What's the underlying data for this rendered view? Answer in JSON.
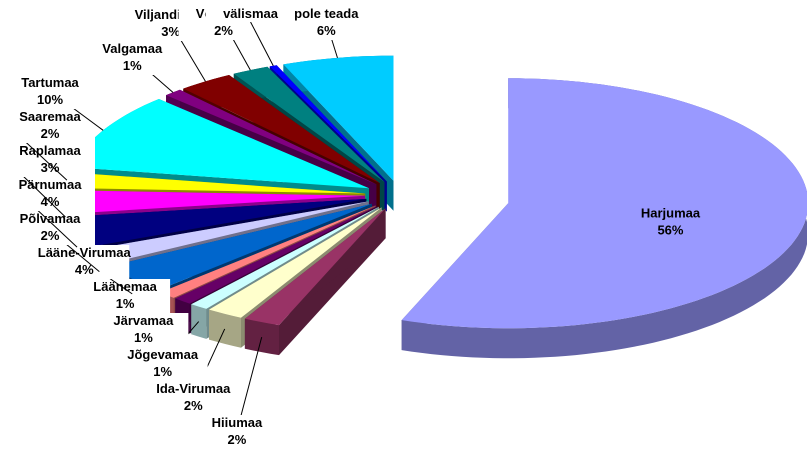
{
  "chart_data": {
    "type": "pie3d",
    "categories": [
      "Harjumaa",
      "Hiiumaa",
      "Ida-Virumaa",
      "Jõgevamaa",
      "Järvamaa",
      "Läänemaa",
      "Lääne-Virumaa",
      "Põlvamaa",
      "Pärnumaa",
      "Raplamaa",
      "Saaremaa",
      "Tartumaa",
      "Valgamaa",
      "Viljandimaa",
      "Võrumaa",
      "välismaa",
      "pole teada"
    ],
    "values": [
      56,
      2,
      2,
      1,
      1,
      1,
      4,
      2,
      4,
      3,
      2,
      10,
      1,
      3,
      2,
      0.4,
      6
    ],
    "value_labels": [
      "56%",
      "2%",
      "2%",
      "1%",
      "1%",
      "1%",
      "4%",
      "2%",
      "4%",
      "3%",
      "2%",
      "10%",
      "1%",
      "3%",
      "2%",
      null,
      "6%"
    ],
    "colors": [
      "#9999ff",
      "#993366",
      "#ffffcc",
      "#ccffff",
      "#660066",
      "#ff8080",
      "#0066cc",
      "#ccccff",
      "#000080",
      "#ff00ff",
      "#ffff00",
      "#00ffff",
      "#800080",
      "#800000",
      "#008080",
      "#0000ff",
      "#00ccff"
    ]
  }
}
